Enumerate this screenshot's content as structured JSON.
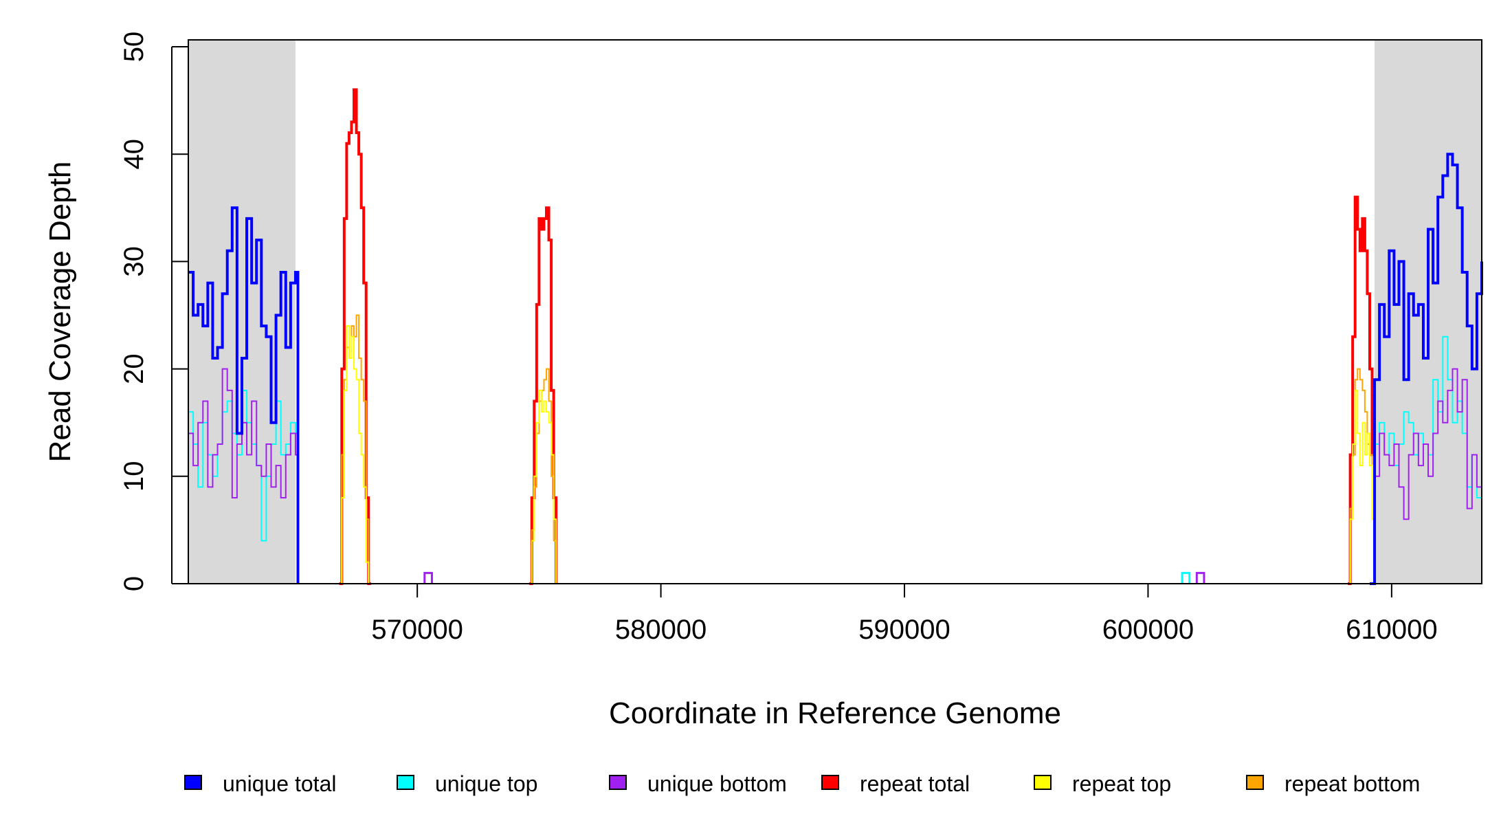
{
  "chart_data": {
    "type": "line",
    "xlabel": "Coordinate in Reference Genome",
    "ylabel": "Read Coverage Depth",
    "xlim": [
      560600,
      613700
    ],
    "ylim": [
      0,
      50
    ],
    "xticks": [
      570000,
      580000,
      590000,
      600000,
      610000
    ],
    "xtick_labels": [
      "570000",
      "580000",
      "590000",
      "600000",
      "610000"
    ],
    "yticks": [
      0,
      10,
      20,
      30,
      40,
      50
    ],
    "ytick_labels": [
      "0",
      "10",
      "20",
      "30",
      "40",
      "50"
    ],
    "grid": false,
    "legend_position": "bottom",
    "shaded_regions": [
      [
        560600,
        565000
      ],
      [
        609300,
        613700
      ]
    ],
    "shade_color": "#d9d9d9",
    "series": [
      {
        "name": "unique total",
        "color": "#0000ff",
        "stroke_width": 4,
        "x": [
          560600,
          560800,
          561000,
          561200,
          561400,
          561600,
          561800,
          562000,
          562200,
          562400,
          562600,
          562800,
          563000,
          563200,
          563400,
          563600,
          563800,
          564000,
          564200,
          564400,
          564600,
          564800,
          565000,
          565100,
          609100,
          609300,
          609500,
          609700,
          609900,
          610100,
          610300,
          610500,
          610700,
          610900,
          611100,
          611300,
          611500,
          611700,
          611900,
          612100,
          612300,
          612500,
          612700,
          612900,
          613100,
          613300,
          613500,
          613700
        ],
        "values": [
          29,
          25,
          26,
          24,
          28,
          21,
          22,
          27,
          31,
          35,
          14,
          21,
          34,
          28,
          32,
          24,
          23,
          15,
          25,
          29,
          22,
          28,
          29,
          0,
          0,
          19,
          26,
          23,
          31,
          26,
          30,
          19,
          27,
          25,
          26,
          21,
          33,
          28,
          36,
          38,
          40,
          39,
          35,
          29,
          24,
          20,
          27,
          30
        ]
      },
      {
        "name": "unique top",
        "color": "#00ffff",
        "stroke_width": 2,
        "x": [
          560600,
          560800,
          561000,
          561200,
          561400,
          561600,
          561800,
          562000,
          562200,
          562400,
          562600,
          562800,
          563000,
          563200,
          563400,
          563600,
          563800,
          564000,
          564200,
          564400,
          564600,
          564800,
          565000,
          565100,
          609100,
          609300,
          609500,
          609700,
          609900,
          610100,
          610300,
          610500,
          610700,
          610900,
          611100,
          611300,
          611500,
          611700,
          611900,
          612100,
          612300,
          612500,
          612700,
          612900,
          613100,
          613300,
          613500,
          613700
        ],
        "values": [
          16,
          13,
          9,
          15,
          12,
          10,
          13,
          16,
          17,
          14,
          12,
          18,
          15,
          13,
          11,
          4,
          10,
          13,
          17,
          12,
          13,
          15,
          14,
          0,
          0,
          13,
          15,
          12,
          14,
          11,
          13,
          16,
          15,
          12,
          14,
          13,
          12,
          19,
          16,
          23,
          19,
          15,
          17,
          14,
          9,
          12,
          8,
          18
        ]
      },
      {
        "name": "unique bottom",
        "color": "#a020f0",
        "stroke_width": 2,
        "x": [
          560600,
          560800,
          561000,
          561200,
          561400,
          561600,
          561800,
          562000,
          562200,
          562400,
          562600,
          562800,
          563000,
          563200,
          563400,
          563600,
          563800,
          564000,
          564200,
          564400,
          564600,
          564800,
          565000,
          565100,
          609100,
          609300,
          609500,
          609700,
          609900,
          610100,
          610300,
          610500,
          610700,
          610900,
          611100,
          611300,
          611500,
          611700,
          611900,
          612100,
          612300,
          612500,
          612700,
          612900,
          613100,
          613300,
          613500,
          613700
        ],
        "values": [
          14,
          11,
          15,
          17,
          9,
          12,
          13,
          20,
          18,
          8,
          13,
          15,
          12,
          17,
          11,
          10,
          13,
          9,
          11,
          8,
          12,
          14,
          12,
          0,
          0,
          10,
          14,
          12,
          11,
          13,
          9,
          6,
          12,
          14,
          11,
          13,
          10,
          14,
          17,
          15,
          18,
          20,
          16,
          19,
          7,
          12,
          9,
          13
        ]
      },
      {
        "name": "repeat total",
        "color": "#ff0000",
        "stroke_width": 4,
        "x": [
          566800,
          566900,
          567000,
          567100,
          567200,
          567300,
          567400,
          567500,
          567600,
          567700,
          567800,
          567900,
          568000,
          568100,
          574600,
          574700,
          574800,
          574900,
          575000,
          575100,
          575200,
          575300,
          575400,
          575500,
          575600,
          575700,
          608200,
          608300,
          608400,
          608500,
          608600,
          608700,
          608800,
          608900,
          609000,
          609100,
          609200,
          609300
        ],
        "values": [
          0,
          20,
          34,
          41,
          42,
          43,
          46,
          42,
          40,
          35,
          28,
          8,
          0,
          0,
          0,
          8,
          17,
          26,
          34,
          33,
          34,
          35,
          32,
          18,
          8,
          0,
          0,
          12,
          23,
          36,
          33,
          31,
          34,
          31,
          27,
          20,
          12,
          12
        ],
        "spikes": [
          [
            570400,
            1
          ],
          [
            570600,
            0
          ]
        ]
      },
      {
        "name": "repeat top",
        "color": "#ffff00",
        "stroke_width": 2,
        "x": [
          566800,
          566900,
          567000,
          567100,
          567200,
          567300,
          567400,
          567500,
          567600,
          567700,
          567800,
          567900,
          568000,
          568100,
          574600,
          574700,
          574800,
          574900,
          575000,
          575100,
          575200,
          575300,
          575400,
          575500,
          575600,
          575700,
          608200,
          608300,
          608400,
          608500,
          608600,
          608700,
          608800,
          608900,
          609000,
          609100,
          609200,
          609300
        ],
        "values": [
          0,
          8,
          18,
          24,
          21,
          23,
          20,
          19,
          14,
          12,
          9,
          2,
          0,
          0,
          0,
          4,
          10,
          15,
          18,
          16,
          17,
          16,
          15,
          12,
          6,
          0,
          0,
          6,
          13,
          18,
          14,
          11,
          15,
          12,
          14,
          11,
          6,
          5
        ]
      },
      {
        "name": "repeat bottom",
        "color": "#ffa500",
        "stroke_width": 2,
        "x": [
          566800,
          566900,
          567000,
          567100,
          567200,
          567300,
          567400,
          567500,
          567600,
          567700,
          567800,
          567900,
          568000,
          568100,
          574600,
          574700,
          574800,
          574900,
          575000,
          575100,
          575200,
          575300,
          575400,
          575500,
          575600,
          575700,
          608200,
          608300,
          608400,
          608500,
          608600,
          608700,
          608800,
          608900,
          609000,
          609100,
          609200,
          609300
        ],
        "values": [
          0,
          12,
          19,
          22,
          21,
          24,
          23,
          25,
          21,
          19,
          17,
          6,
          0,
          0,
          0,
          5,
          9,
          14,
          17,
          18,
          19,
          20,
          17,
          10,
          4,
          0,
          0,
          7,
          12,
          19,
          20,
          19,
          18,
          16,
          13,
          12,
          6,
          6
        ]
      }
    ],
    "small_bumps": [
      {
        "series": "unique bottom",
        "x": [
          570300,
          570600
        ],
        "value": 1
      },
      {
        "series": "unique top",
        "x": [
          601400,
          601700
        ],
        "value": 1
      },
      {
        "series": "unique bottom",
        "x": [
          602000,
          602300
        ],
        "value": 1
      }
    ]
  }
}
